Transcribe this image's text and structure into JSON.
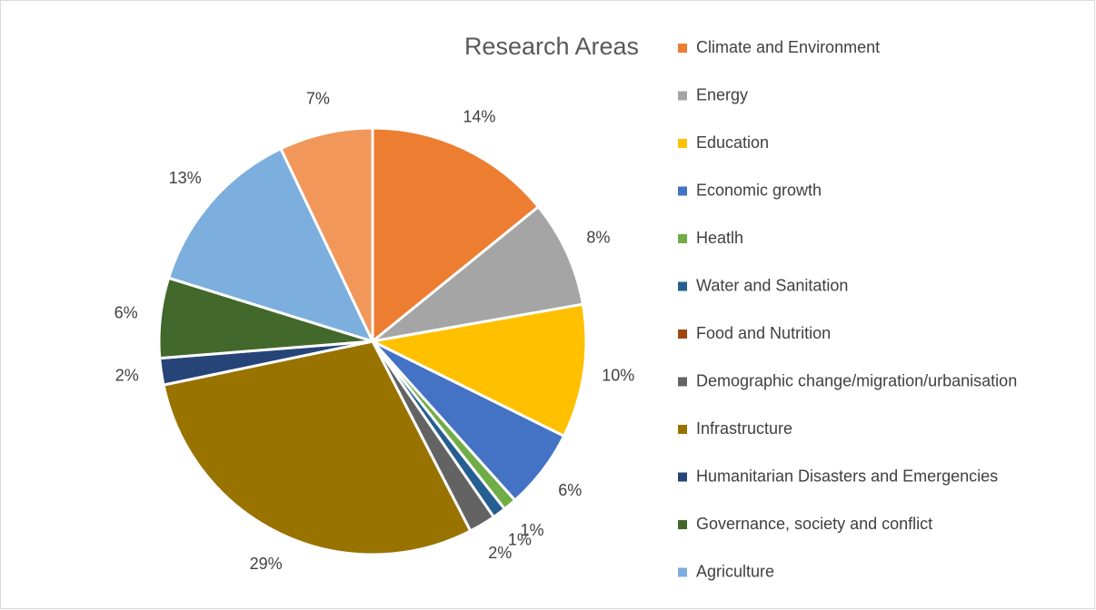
{
  "chart_data": {
    "type": "pie",
    "title": "Research Areas",
    "categories": [
      "Climate and Environment",
      "Energy",
      "Education",
      "Economic growth",
      "Heatlh",
      "Water and Sanitation",
      "Food and Nutrition",
      "Demographic change/migration/urbanisation",
      "Infrastructure",
      "Humanitarian Disasters and Emergencies",
      "Governance, society and conflict",
      "Agriculture",
      null
    ],
    "values": [
      14,
      8,
      10,
      6,
      1,
      1,
      0,
      2,
      29,
      2,
      6,
      13,
      7
    ],
    "value_labels": [
      "14%",
      "8%",
      "10%",
      "6%",
      "1%",
      "1%",
      null,
      "2%",
      "29%",
      "2%",
      "6%",
      "13%",
      "7%"
    ],
    "colors": [
      "#ed7d31",
      "#a5a5a5",
      "#ffc000",
      "#4472c4",
      "#70ad47",
      "#255e91",
      "#9e480e",
      "#636363",
      "#997300",
      "#264478",
      "#43682b",
      "#7cafdd",
      "#f1975a"
    ],
    "legend": "right"
  }
}
